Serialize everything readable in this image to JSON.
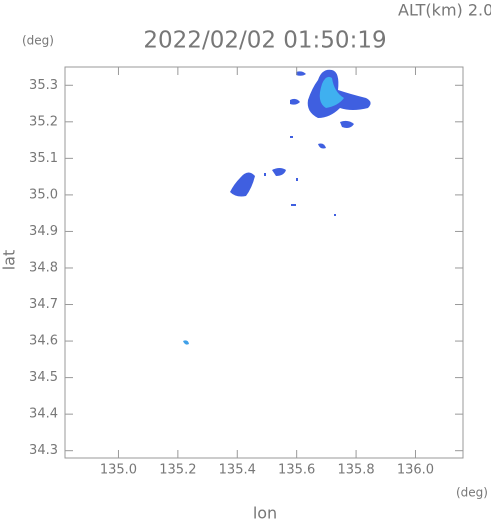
{
  "chart_data": {
    "type": "map",
    "title": "2022/02/02 01:50:19",
    "subtitle": "ALT(km) 2.0",
    "x_label": "lon",
    "y_label": "lat",
    "x_unit": "(deg)",
    "y_unit": "(deg)",
    "xlim": [
      134.82,
      136.16
    ],
    "ylim": [
      34.28,
      35.35
    ],
    "xticks": [
      {
        "value": 135.0,
        "label": "135.0"
      },
      135.2,
      135.4,
      135.6,
      135.8,
      {
        "value": 136.0,
        "label": "136.0"
      }
    ],
    "yticks": [
      34.3,
      34.4,
      34.5,
      34.6,
      34.7,
      34.8,
      34.9,
      {
        "value": 35.0,
        "label": "35.0"
      },
      35.1,
      35.2,
      35.3
    ]
  }
}
